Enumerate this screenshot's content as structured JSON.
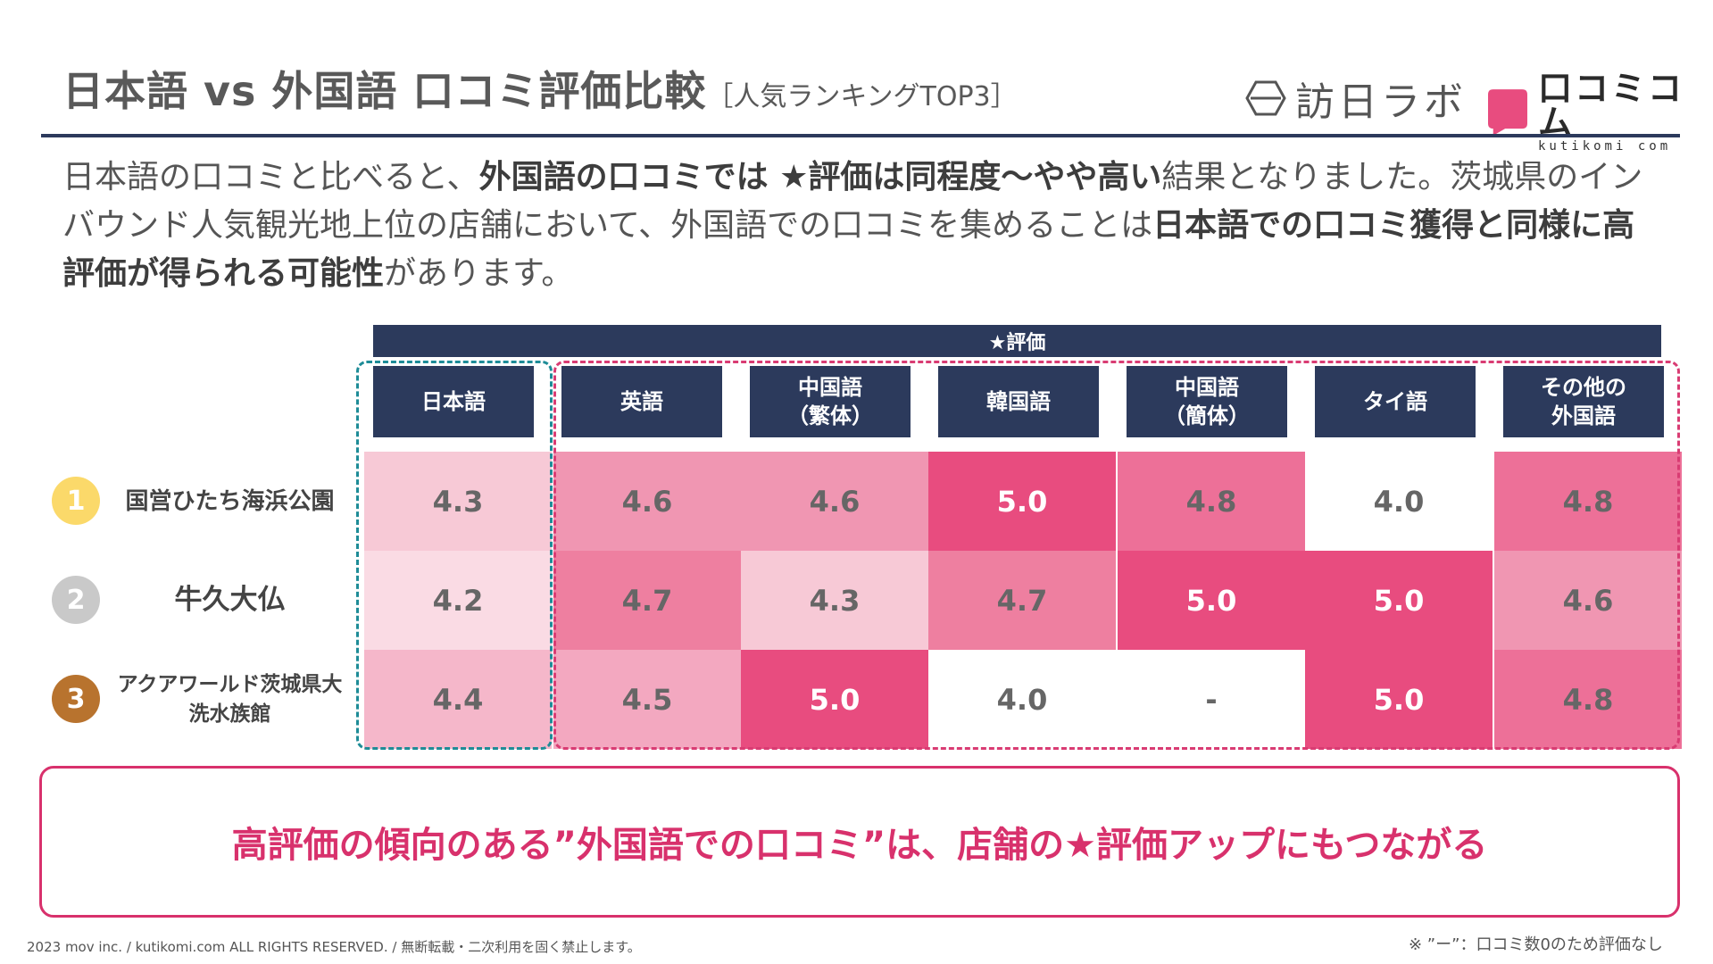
{
  "header": {
    "title": "日本語 vs 外国語 口コミ評価比較",
    "subtitle": "［人気ランキングTOP3］",
    "logo_houjitsu": "訪日ラボ",
    "logo_kutikomi": "口コミコム",
    "logo_kutikomi_sub": "kutikomi com"
  },
  "intro": {
    "p1": "日本語の口コミと比べると、",
    "b1": "外国語の口コミでは ★評価は同程度〜やや高い",
    "p2": "結果となりました。茨城県のインバウンド人気観光地上位の店舗において、外国語での口コミを集めることは",
    "b2": "日本語での口コミ獲得と同様に高評価が得られる可能性",
    "p3": "があります。"
  },
  "table": {
    "group_header": "★評価",
    "columns": [
      "日本語",
      "英語",
      "中国語\n（繁体）",
      "韓国語",
      "中国語\n（簡体）",
      "タイ語",
      "その他の\n外国語"
    ],
    "rows": [
      {
        "rank": "1",
        "rank_color": "#fbd96a",
        "place": "国営ひたち海浜公園",
        "values": [
          "4.3",
          "4.6",
          "4.6",
          "5.0",
          "4.8",
          "4.0",
          "4.8"
        ],
        "colors": [
          "#f7c9d6",
          "#f096b2",
          "#f096b2",
          "#e84c7f",
          "#ed7098",
          "#ffffff",
          "#ed7098"
        ],
        "text_colors": [
          "#666666",
          "#666666",
          "#666666",
          "#ffffff",
          "#666666",
          "#666666",
          "#666666"
        ]
      },
      {
        "rank": "2",
        "rank_color": "#c9c9c9",
        "place": "牛久大仏",
        "values": [
          "4.2",
          "4.7",
          "4.3",
          "4.7",
          "5.0",
          "5.0",
          "4.6"
        ],
        "colors": [
          "#fadbe4",
          "#ee7fa0",
          "#f7c9d6",
          "#ee7fa0",
          "#e84c7f",
          "#e84c7f",
          "#f096b2"
        ],
        "text_colors": [
          "#666666",
          "#666666",
          "#666666",
          "#666666",
          "#ffffff",
          "#ffffff",
          "#666666"
        ]
      },
      {
        "rank": "3",
        "rank_color": "#b8732e",
        "place": "アクアワールド茨城県大洗水族館",
        "values": [
          "4.4",
          "4.5",
          "5.0",
          "4.0",
          "-",
          "5.0",
          "4.8"
        ],
        "colors": [
          "#f5b7ca",
          "#f3a8c0",
          "#e84c7f",
          "#ffffff",
          "#ffffff",
          "#e84c7f",
          "#ed7098"
        ],
        "text_colors": [
          "#666666",
          "#666666",
          "#ffffff",
          "#666666",
          "#666666",
          "#ffffff",
          "#666666"
        ]
      }
    ]
  },
  "conclusion": "高評価の傾向のある”外国語での口コミ”は、店舗の★評価アップにもつながる",
  "footer": {
    "copyright": "2023 mov inc. / kutikomi.com ALL RIGHTS RESERVED. / 無断転載・二次利用を固く禁止します。",
    "note": "※ ”ー”：口コミ数0のため評価なし"
  }
}
